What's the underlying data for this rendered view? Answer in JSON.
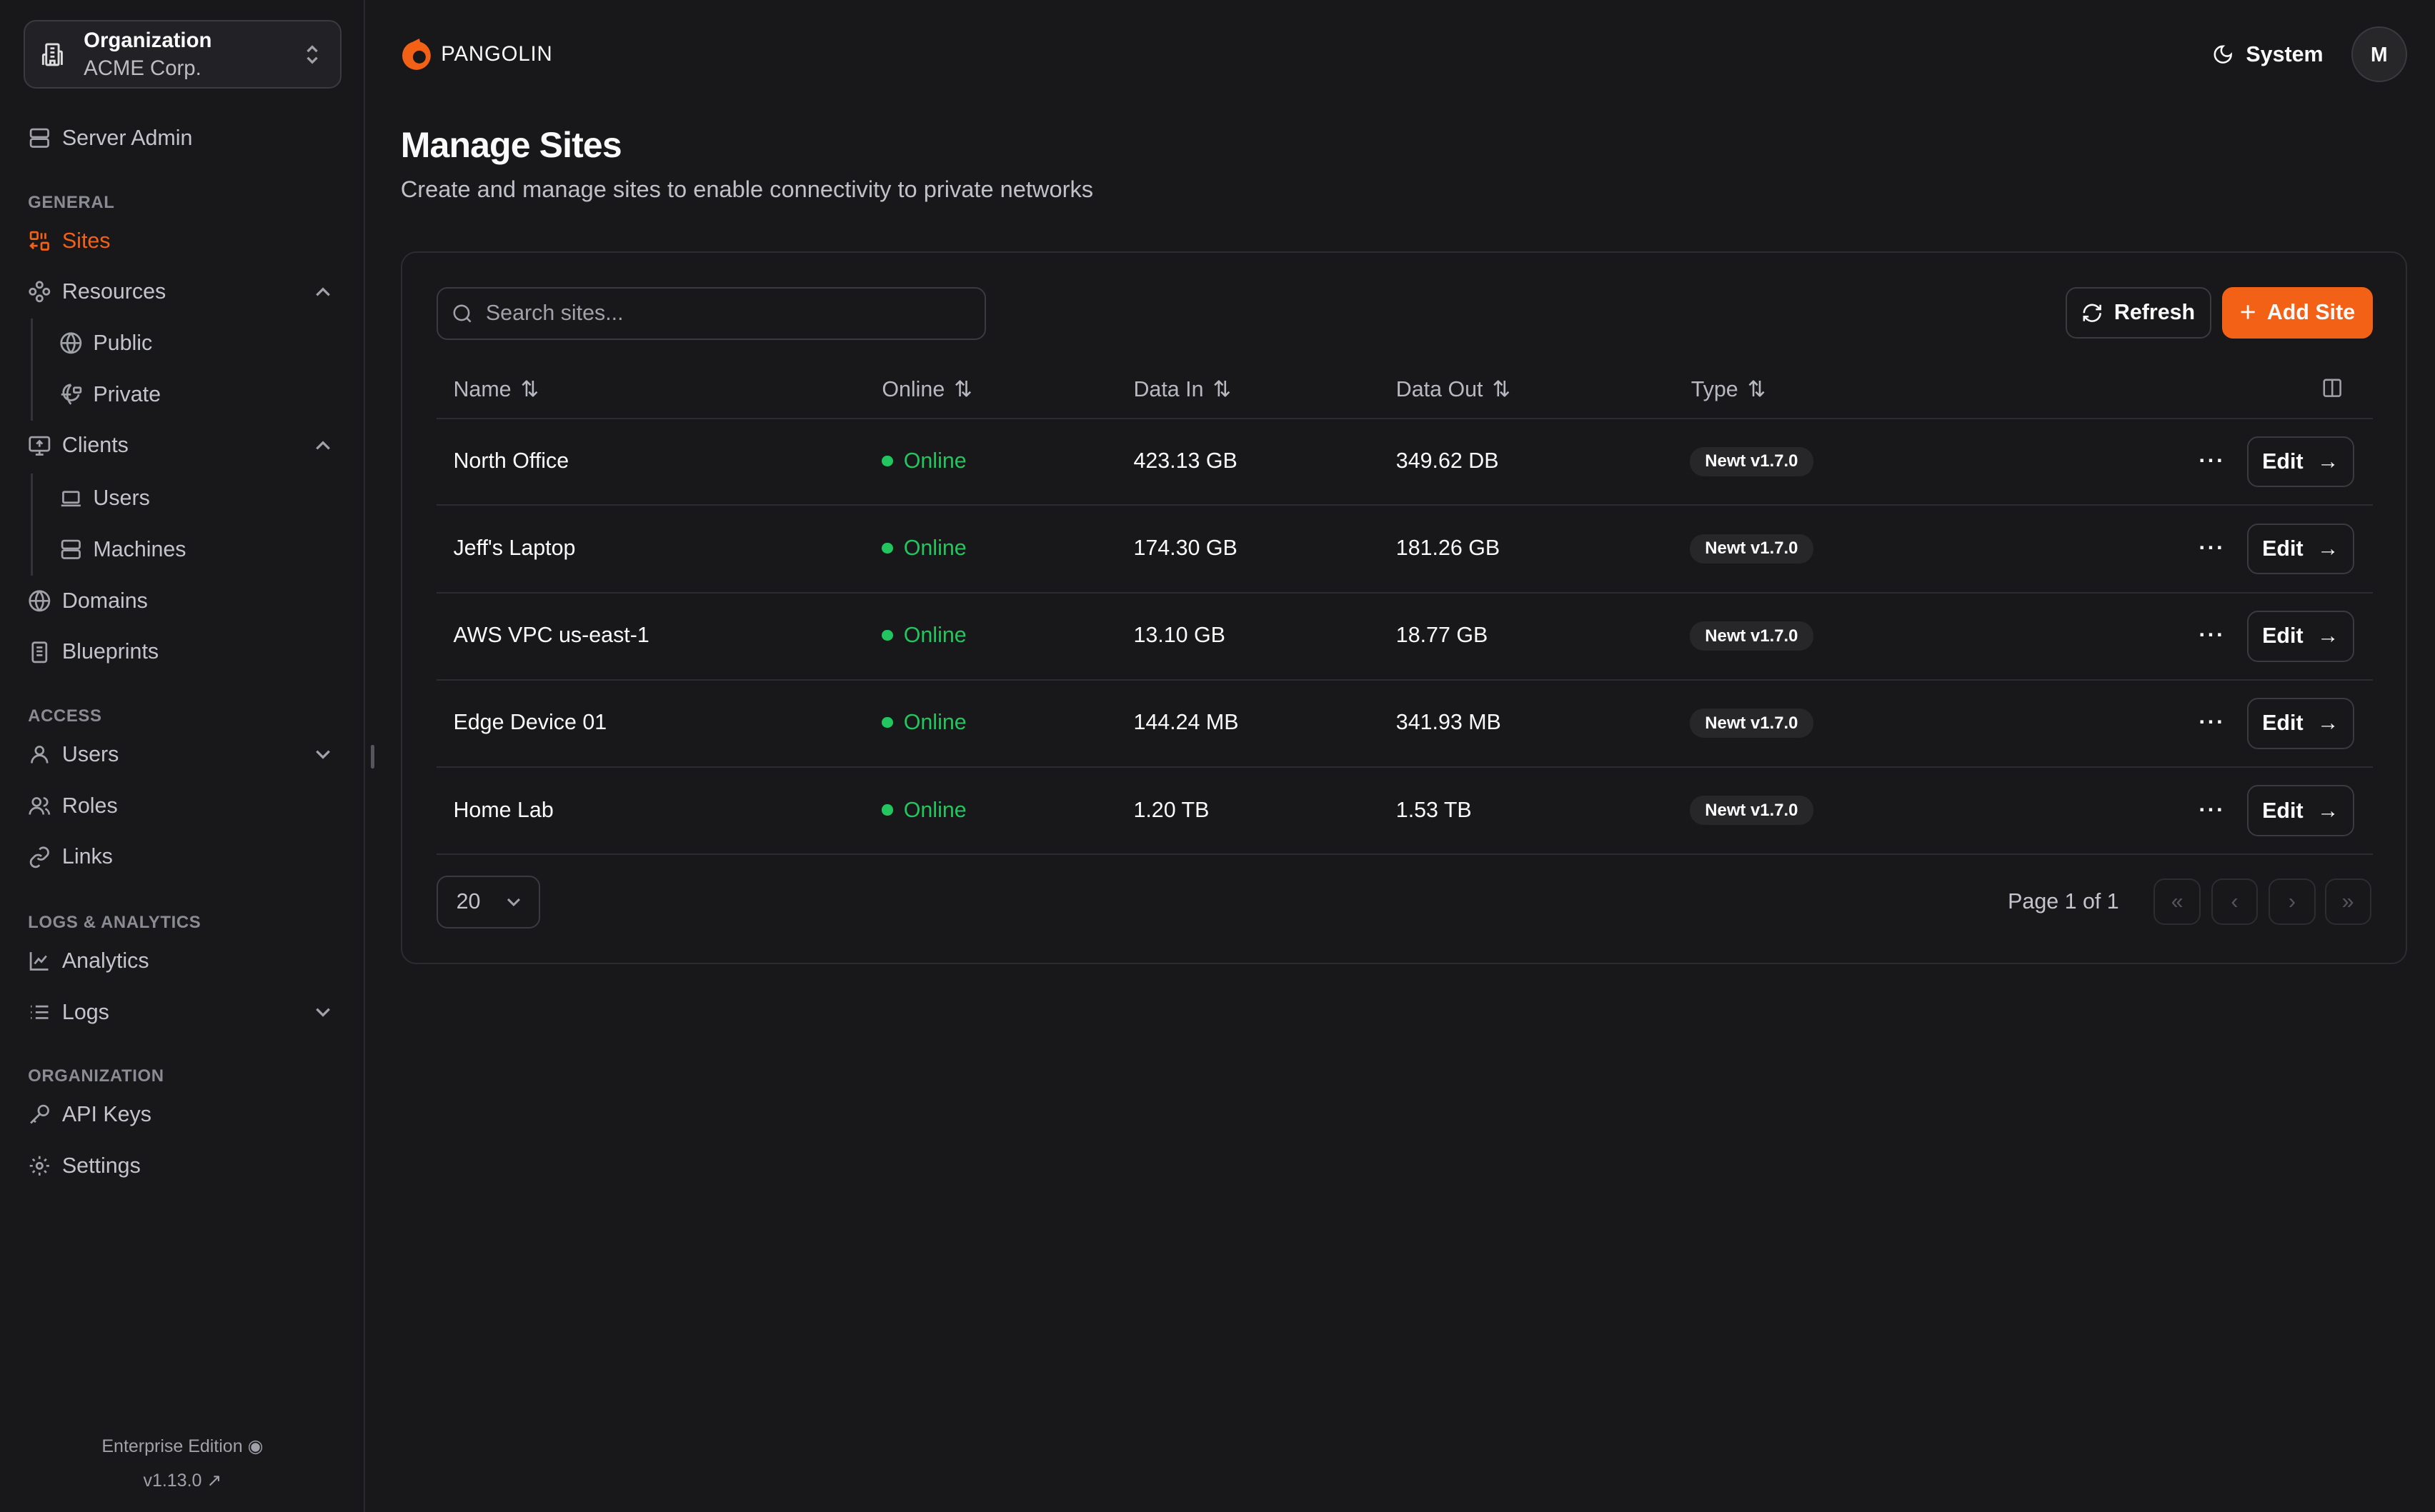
{
  "colors": {
    "accent": "#f36117",
    "online": "#22c55e",
    "background": "#18181b"
  },
  "org": {
    "label": "Organization",
    "name": "ACME Corp."
  },
  "sidebar": {
    "server_admin": "Server Admin",
    "sections": {
      "general": "GENERAL",
      "access": "ACCESS",
      "logs": "LOGS & ANALYTICS",
      "organization": "ORGANIZATION"
    },
    "items": {
      "sites": "Sites",
      "resources": "Resources",
      "public": "Public",
      "private": "Private",
      "clients": "Clients",
      "users_client": "Users",
      "machines": "Machines",
      "domains": "Domains",
      "blueprints": "Blueprints",
      "users": "Users",
      "roles": "Roles",
      "links": "Links",
      "analytics": "Analytics",
      "logs": "Logs",
      "api_keys": "API Keys",
      "settings": "Settings"
    },
    "footer": {
      "edition": "Enterprise Edition",
      "version": "v1.13.0"
    }
  },
  "header": {
    "brand": "PANGOLIN",
    "theme": "System",
    "avatar": "M"
  },
  "page": {
    "title": "Manage Sites",
    "subtitle": "Create and manage sites to enable connectivity to private networks"
  },
  "toolbar": {
    "search_placeholder": "Search sites...",
    "refresh": "Refresh",
    "add": "Add Site"
  },
  "table": {
    "columns": [
      "Name",
      "Online",
      "Data In",
      "Data Out",
      "Type"
    ],
    "rows": [
      {
        "name": "North Office",
        "status": "Online",
        "data_in": "423.13 GB",
        "data_out": "349.62 DB",
        "type": "Newt v1.7.0",
        "action": "Edit"
      },
      {
        "name": "Jeff's Laptop",
        "status": "Online",
        "data_in": "174.30 GB",
        "data_out": "181.26 GB",
        "type": "Newt v1.7.0",
        "action": "Edit"
      },
      {
        "name": "AWS VPC us-east-1",
        "status": "Online",
        "data_in": "13.10 GB",
        "data_out": "18.77 GB",
        "type": "Newt v1.7.0",
        "action": "Edit"
      },
      {
        "name": "Edge Device 01",
        "status": "Online",
        "data_in": "144.24 MB",
        "data_out": "341.93 MB",
        "type": "Newt v1.7.0",
        "action": "Edit"
      },
      {
        "name": "Home Lab",
        "status": "Online",
        "data_in": "1.20 TB",
        "data_out": "1.53 TB",
        "type": "Newt v1.7.0",
        "action": "Edit"
      }
    ]
  },
  "pagination": {
    "page_size": "20",
    "info": "Page 1 of 1"
  }
}
